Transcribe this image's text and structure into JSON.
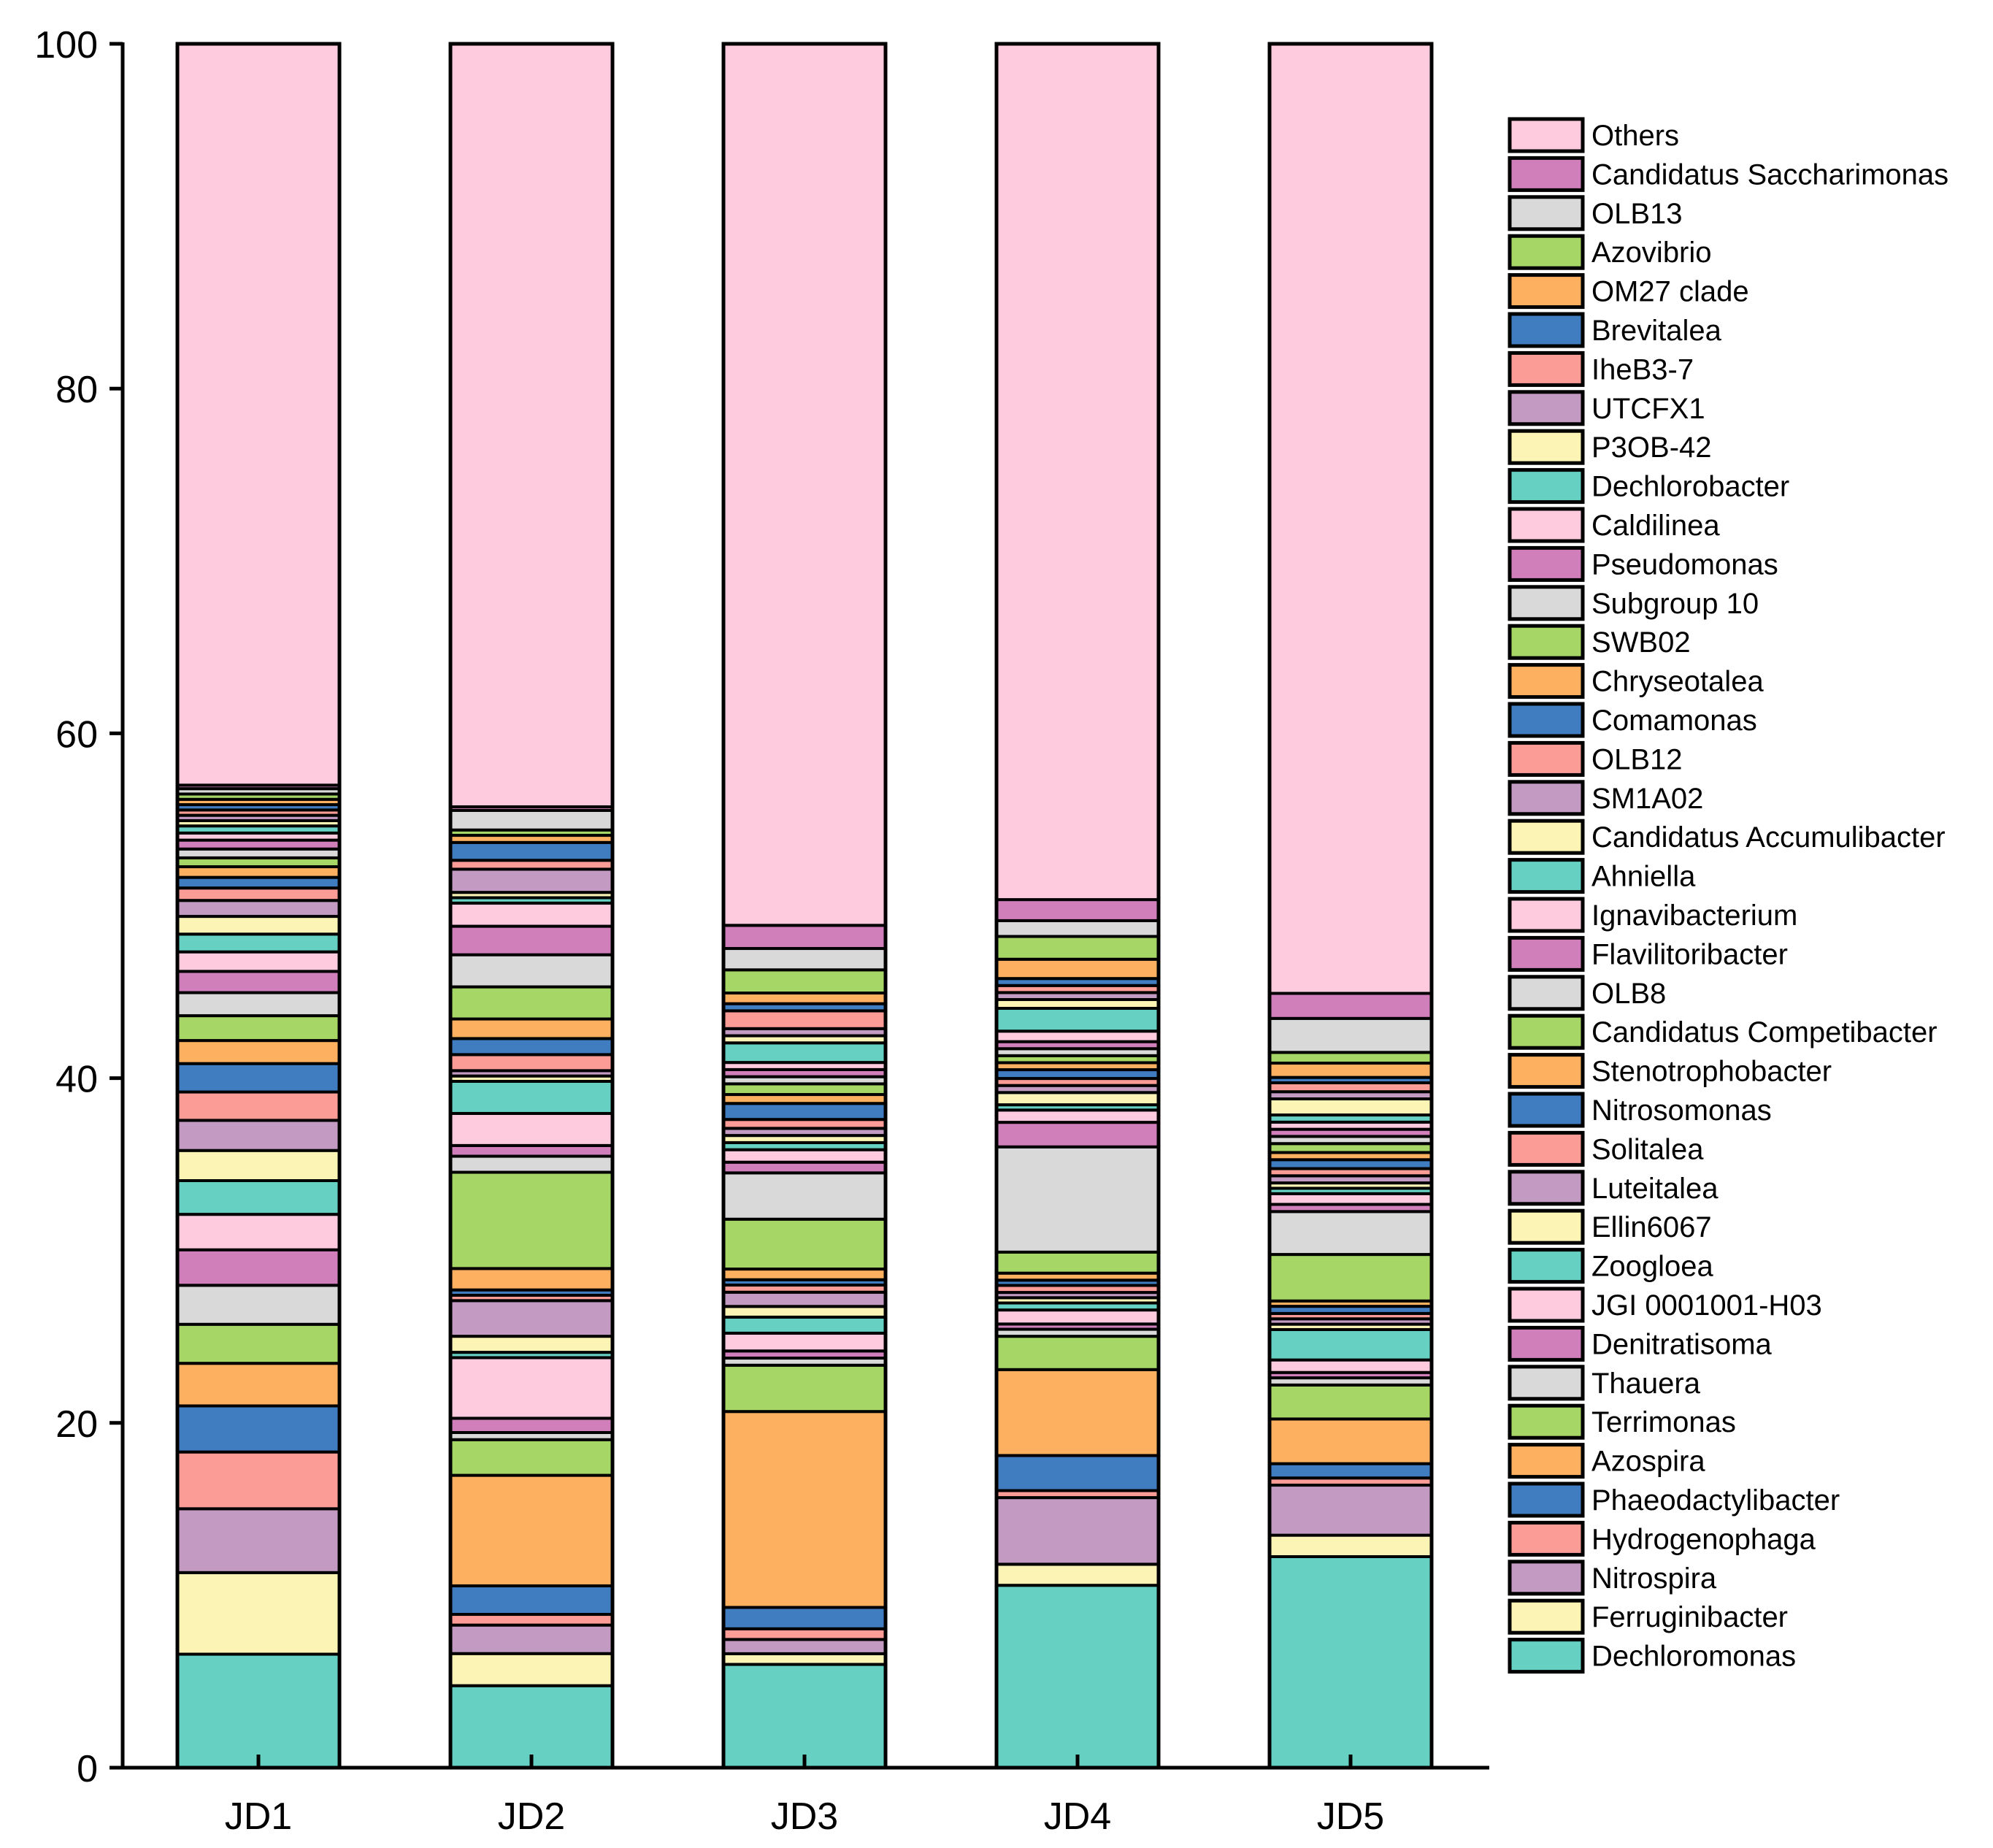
{
  "chart_data": {
    "type": "bar",
    "stacked": true,
    "title": "",
    "xlabel": "",
    "ylabel": "",
    "ylim": [
      0,
      100
    ],
    "yticks": [
      0,
      20,
      40,
      60,
      80,
      100
    ],
    "categories": [
      "JD1",
      "JD2",
      "JD3",
      "JD4",
      "JD5"
    ],
    "legend_position": "right",
    "series": [
      {
        "name": "Dechloromonas",
        "color": "#66d1c2",
        "values": [
          6.4,
          4.6,
          5.8,
          10.4,
          11.8
        ]
      },
      {
        "name": "Ferruginibacter",
        "color": "#fbf4b5",
        "values": [
          4.6,
          1.8,
          0.6,
          1.2,
          1.2
        ]
      },
      {
        "name": "Nitrospira",
        "color": "#c39bc2",
        "values": [
          3.6,
          1.6,
          0.8,
          3.8,
          2.8
        ]
      },
      {
        "name": "Hydrogenophaga",
        "color": "#fb9d96",
        "values": [
          3.2,
          0.6,
          0.6,
          0.4,
          0.4
        ]
      },
      {
        "name": "Phaeodactylibacter",
        "color": "#3f7cc0",
        "values": [
          2.6,
          1.6,
          1.2,
          2.0,
          0.8
        ]
      },
      {
        "name": "Azospira",
        "color": "#fdb05f",
        "values": [
          2.4,
          6.2,
          11.0,
          4.9,
          2.5
        ]
      },
      {
        "name": "Terrimonas",
        "color": "#a6d766",
        "values": [
          2.2,
          2.0,
          2.6,
          1.9,
          1.9
        ]
      },
      {
        "name": "Thauera",
        "color": "#d9d9d9",
        "values": [
          2.2,
          0.4,
          0.4,
          0.4,
          0.4
        ]
      },
      {
        "name": "Denitratisoma",
        "color": "#d07fba",
        "values": [
          2.0,
          0.8,
          0.4,
          0.3,
          0.3
        ]
      },
      {
        "name": "JGI 0001001-H03",
        "color": "#fdcade",
        "values": [
          2.0,
          3.4,
          1.0,
          0.8,
          0.7
        ]
      },
      {
        "name": "Zoogloea",
        "color": "#66d1c2",
        "values": [
          1.9,
          0.3,
          0.9,
          0.4,
          1.7
        ]
      },
      {
        "name": "Ellin6067",
        "color": "#fbf4b5",
        "values": [
          1.7,
          0.9,
          0.6,
          0.3,
          0.3
        ]
      },
      {
        "name": "Luteitalea",
        "color": "#c39bc2",
        "values": [
          1.7,
          2.0,
          0.8,
          0.3,
          0.3
        ]
      },
      {
        "name": "Solitalea",
        "color": "#fb9d96",
        "values": [
          1.6,
          0.3,
          0.4,
          0.4,
          0.3
        ]
      },
      {
        "name": "Nitrosomonas",
        "color": "#3f7cc0",
        "values": [
          1.6,
          0.3,
          0.3,
          0.3,
          0.4
        ]
      },
      {
        "name": "Stenotrophobacter",
        "color": "#fdb05f",
        "values": [
          1.3,
          1.2,
          0.6,
          0.4,
          0.3
        ]
      },
      {
        "name": "Candidatus Competibacter",
        "color": "#a6d766",
        "values": [
          1.4,
          5.4,
          2.8,
          1.2,
          2.6
        ]
      },
      {
        "name": "OLB8",
        "color": "#d9d9d9",
        "values": [
          1.3,
          0.9,
          2.6,
          6.0,
          2.4
        ]
      },
      {
        "name": "Flavilitoribacter",
        "color": "#d07fba",
        "values": [
          1.2,
          0.6,
          0.6,
          1.4,
          0.4
        ]
      },
      {
        "name": "Ignavibacterium",
        "color": "#fdcade",
        "values": [
          1.1,
          1.8,
          0.7,
          0.7,
          0.6
        ]
      },
      {
        "name": "Ahniella",
        "color": "#66d1c2",
        "values": [
          1.0,
          1.8,
          0.4,
          0.3,
          0.3
        ]
      },
      {
        "name": "Candidatus Accumulibacter",
        "color": "#fbf4b5",
        "values": [
          1.0,
          0.3,
          0.4,
          0.7,
          0.3
        ]
      },
      {
        "name": "SM1A02",
        "color": "#c39bc2",
        "values": [
          0.9,
          0.3,
          0.4,
          0.4,
          0.4
        ]
      },
      {
        "name": "OLB12",
        "color": "#fb9d96",
        "values": [
          0.7,
          0.9,
          0.5,
          0.4,
          0.4
        ]
      },
      {
        "name": "Comamonas",
        "color": "#3f7cc0",
        "values": [
          0.6,
          0.9,
          0.9,
          0.5,
          0.5
        ]
      },
      {
        "name": "Chryseotalea",
        "color": "#fdb05f",
        "values": [
          0.6,
          1.1,
          0.5,
          0.4,
          0.4
        ]
      },
      {
        "name": "SWB02",
        "color": "#a6d766",
        "values": [
          0.5,
          1.8,
          0.6,
          0.4,
          0.5
        ]
      },
      {
        "name": "Subgroup 10",
        "color": "#d9d9d9",
        "values": [
          0.5,
          1.8,
          0.4,
          0.4,
          0.4
        ]
      },
      {
        "name": "Pseudomonas",
        "color": "#d07fba",
        "values": [
          0.5,
          1.6,
          0.4,
          0.4,
          0.4
        ]
      },
      {
        "name": "Caldilinea",
        "color": "#fdcade",
        "values": [
          0.4,
          1.3,
          0.4,
          0.6,
          0.4
        ]
      },
      {
        "name": "Dechlorobacter",
        "color": "#66d1c2",
        "values": [
          0.4,
          0.3,
          1.1,
          1.3,
          0.4
        ]
      },
      {
        "name": "P3OB-42",
        "color": "#fbf4b5",
        "values": [
          0.3,
          0.3,
          0.4,
          0.5,
          0.9
        ]
      },
      {
        "name": "UTCFX1",
        "color": "#c39bc2",
        "values": [
          0.3,
          1.3,
          0.4,
          0.4,
          0.4
        ]
      },
      {
        "name": "IheB3-7",
        "color": "#fb9d96",
        "values": [
          0.3,
          0.5,
          1.0,
          0.4,
          0.5
        ]
      },
      {
        "name": "Brevitalea",
        "color": "#3f7cc0",
        "values": [
          0.3,
          1.0,
          0.4,
          0.4,
          0.3
        ]
      },
      {
        "name": "OM27 clade",
        "color": "#fdb05f",
        "values": [
          0.3,
          0.4,
          0.6,
          1.1,
          0.8
        ]
      },
      {
        "name": "Azovibrio",
        "color": "#a6d766",
        "values": [
          0.3,
          0.3,
          1.3,
          1.3,
          0.6
        ]
      },
      {
        "name": "OLB13",
        "color": "#d9d9d9",
        "values": [
          0.3,
          1.1,
          1.2,
          0.9,
          1.9
        ]
      },
      {
        "name": "Candidatus Saccharimonas",
        "color": "#d07fba",
        "values": [
          0.2,
          0.2,
          1.3,
          1.2,
          1.4
        ]
      },
      {
        "name": "Others",
        "color": "#fdcade",
        "values": [
          41.8,
          42.8,
          49.5,
          48.8,
          53.1
        ]
      }
    ]
  }
}
